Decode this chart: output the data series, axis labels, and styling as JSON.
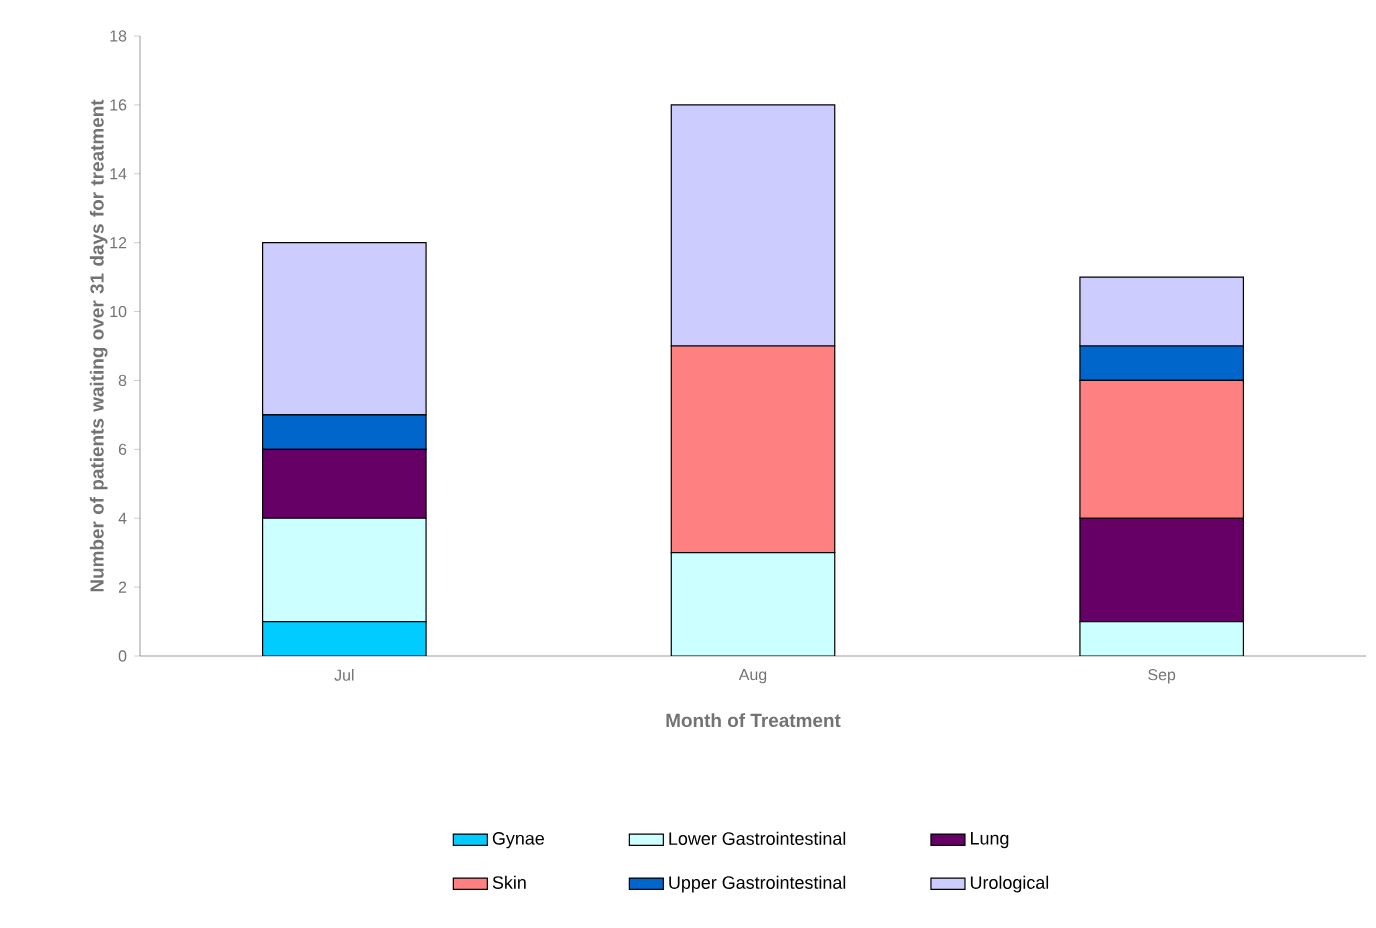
{
  "chart_data": {
    "type": "bar",
    "stacked": true,
    "xlabel": "Month of Treatment",
    "ylabel": "Number of patients waiting over 31 days for treatment",
    "categories": [
      "Jul",
      "Aug",
      "Sep"
    ],
    "series": [
      {
        "name": "Gynae",
        "color": "#00ccff",
        "values": [
          1,
          0,
          0
        ]
      },
      {
        "name": "Lower Gastrointestinal",
        "color": "#ccffff",
        "values": [
          3,
          3,
          1
        ]
      },
      {
        "name": "Lung",
        "color": "#660066",
        "values": [
          2,
          0,
          3
        ]
      },
      {
        "name": "Skin",
        "color": "#ff8080",
        "values": [
          0,
          6,
          4
        ]
      },
      {
        "name": "Upper Gastrointestinal",
        "color": "#0066cc",
        "values": [
          1,
          0,
          1
        ]
      },
      {
        "name": "Urological",
        "color": "#ccccff",
        "values": [
          5,
          7,
          2
        ]
      }
    ],
    "ylim": [
      0,
      18
    ],
    "yticks": [
      0,
      2,
      4,
      6,
      8,
      10,
      12,
      14,
      16,
      18
    ],
    "legend": "bottom"
  }
}
